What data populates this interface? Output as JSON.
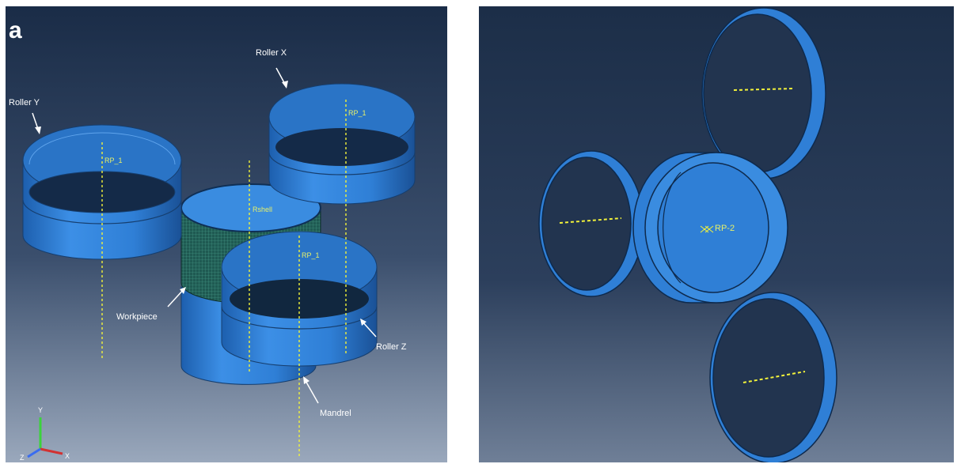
{
  "panel_a": {
    "panel_letter": "a",
    "labels": {
      "roller_x": "Roller X",
      "roller_y": "Roller Y",
      "roller_z": "Roller Z",
      "workpiece": "Workpiece",
      "mandrel": "Mandrel"
    },
    "reference_points": {
      "roller_x_rp": "RP_1",
      "roller_y_rp": "RP_1",
      "roller_z_rp": "RP_1",
      "mandrel_rp": "Rshell"
    },
    "triad": {
      "x": "X",
      "y": "Y",
      "z": "Z"
    }
  },
  "panel_b": {
    "reference_point": "RP-2"
  },
  "colors": {
    "background_top": "#1a2c47",
    "background_bottom": "#8a98ad",
    "part_blue": "#2f7fd6",
    "part_dark": "#1c5aa3",
    "axis_yellow": "#f2f23a"
  }
}
